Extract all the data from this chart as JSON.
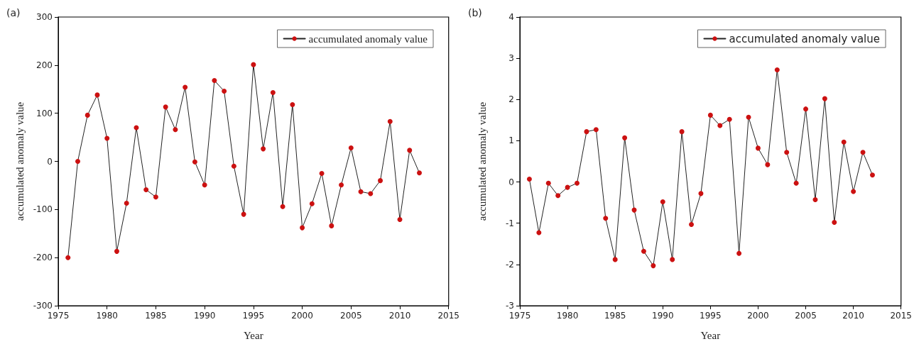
{
  "chart_data": [
    {
      "type": "line",
      "title": "(a)",
      "xlabel": "Year",
      "ylabel": "accumulated anomaly value",
      "x": [
        1976,
        1977,
        1978,
        1979,
        1980,
        1981,
        1982,
        1983,
        1984,
        1985,
        1986,
        1987,
        1988,
        1989,
        1990,
        1991,
        1992,
        1993,
        1994,
        1995,
        1996,
        1997,
        1998,
        1999,
        2000,
        2001,
        2002,
        2003,
        2004,
        2005,
        2006,
        2007,
        2008,
        2009,
        2010,
        2011,
        2012
      ],
      "series": [
        {
          "name": "accumulated anomaly value",
          "color": "#cc1111",
          "values": [
            -200,
            0,
            96,
            138,
            48,
            -187,
            -87,
            70,
            -59,
            -74,
            113,
            66,
            154,
            -1,
            -49,
            168,
            146,
            -10,
            -110,
            201,
            26,
            143,
            -94,
            118,
            -138,
            -88,
            -25,
            -134,
            -49,
            28,
            -63,
            -67,
            -40,
            83,
            -121,
            23,
            -24
          ]
        }
      ],
      "xlim": [
        1975,
        2015
      ],
      "xticks": [
        1975,
        1980,
        1985,
        1990,
        1995,
        2000,
        2005,
        2010,
        2015
      ],
      "ylim": [
        -300,
        300
      ],
      "yticks": [
        -300,
        -200,
        -100,
        0,
        100,
        200,
        300
      ],
      "grid": false,
      "legend": "top right",
      "marker": "circle",
      "line_style": "solid"
    },
    {
      "type": "line",
      "title": "(b)",
      "xlabel": "Year",
      "ylabel": "accumulated anomaly value",
      "x": [
        1976,
        1977,
        1978,
        1979,
        1980,
        1981,
        1982,
        1983,
        1984,
        1985,
        1986,
        1987,
        1988,
        1989,
        1990,
        1991,
        1992,
        1993,
        1994,
        1995,
        1996,
        1997,
        1998,
        1999,
        2000,
        2001,
        2002,
        2003,
        2004,
        2005,
        2006,
        2007,
        2008,
        2009,
        2010,
        2011,
        2012
      ],
      "series": [
        {
          "name": "accumulated anomaly value",
          "color": "#cc1111",
          "values": [
            0.07,
            -1.23,
            -0.03,
            -0.33,
            -0.13,
            -0.03,
            1.22,
            1.27,
            -0.88,
            -1.88,
            1.07,
            -0.68,
            -1.68,
            -2.03,
            -0.48,
            -1.88,
            1.22,
            -1.03,
            -0.28,
            1.62,
            1.37,
            1.52,
            -1.73,
            1.57,
            0.82,
            0.42,
            2.72,
            0.72,
            -0.03,
            1.77,
            -0.43,
            2.02,
            -0.98,
            0.97,
            -0.23,
            0.72,
            0.17
          ]
        }
      ],
      "xlim": [
        1975,
        2015
      ],
      "xticks": [
        1975,
        1980,
        1985,
        1990,
        1995,
        2000,
        2005,
        2010,
        2015
      ],
      "ylim": [
        -3,
        4
      ],
      "yticks": [
        -3,
        -2,
        -1,
        0,
        1,
        2,
        3,
        4
      ],
      "grid": false,
      "legend": "top right",
      "marker": "circle",
      "line_style": "solid"
    }
  ]
}
